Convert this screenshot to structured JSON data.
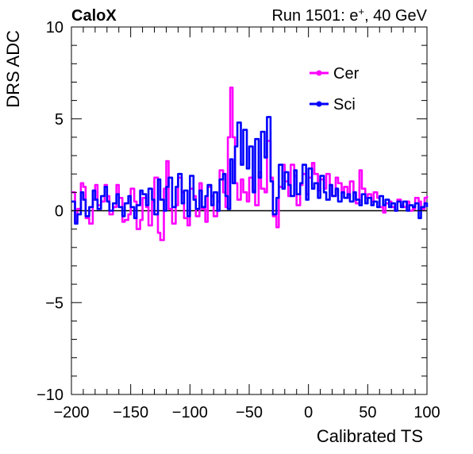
{
  "header": {
    "left": "CaloX",
    "right_prefix": "Run 1501: e",
    "right_sup": "+",
    "right_suffix": ", 40 GeV"
  },
  "chart_data": {
    "type": "line",
    "xlabel": "Calibrated TS",
    "ylabel": "DRS ADC",
    "xlim": [
      -200,
      100
    ],
    "ylim": [
      -10,
      10
    ],
    "x_ticks": [
      -200,
      -150,
      -100,
      -50,
      0,
      50,
      100
    ],
    "x_tick_labels": [
      "−200",
      "−150",
      "−100",
      "−50",
      "0",
      "50",
      "100"
    ],
    "y_ticks": [
      -10,
      -5,
      0,
      5,
      10
    ],
    "y_tick_labels": [
      "−10",
      "−5",
      "0",
      "5",
      "10"
    ],
    "zero_line": true,
    "grid": false,
    "legend_position": "top-right",
    "series": [
      {
        "name": "Cer",
        "color": "#ff00ff",
        "x": [
          -200,
          -197,
          -195,
          -192,
          -190,
          -188,
          -185,
          -182,
          -180,
          -178,
          -175,
          -172,
          -170,
          -168,
          -165,
          -162,
          -160,
          -157,
          -155,
          -152,
          -150,
          -147,
          -145,
          -142,
          -140,
          -137,
          -135,
          -132,
          -130,
          -127,
          -125,
          -122,
          -120,
          -118,
          -115,
          -112,
          -110,
          -107,
          -105,
          -102,
          -100,
          -97,
          -95,
          -92,
          -90,
          -87,
          -85,
          -82,
          -80,
          -77,
          -75,
          -72,
          -70,
          -68,
          -66,
          -64,
          -62,
          -60,
          -57,
          -55,
          -52,
          -50,
          -47,
          -45,
          -42,
          -40,
          -37,
          -35,
          -32,
          -30,
          -27,
          -25,
          -22,
          -20,
          -17,
          -15,
          -12,
          -10,
          -7,
          -5,
          -2,
          0,
          3,
          5,
          8,
          10,
          13,
          15,
          18,
          20,
          23,
          25,
          28,
          30,
          33,
          35,
          38,
          40,
          43,
          45,
          48,
          50,
          53,
          55,
          58,
          60,
          63,
          65,
          68,
          70,
          73,
          75,
          78,
          80,
          83,
          85,
          88,
          90,
          93,
          95,
          98,
          100
        ],
        "y": [
          1.0,
          -0.6,
          0.1,
          1.5,
          1.3,
          -0.4,
          -0.7,
          0.6,
          1.4,
          0.3,
          0.5,
          1.4,
          0.8,
          -0.2,
          0.2,
          1.4,
          0.7,
          -0.6,
          -0.5,
          -0.2,
          1.2,
          0.5,
          -1.0,
          -0.5,
          0.7,
          0.2,
          -0.8,
          0.5,
          1.8,
          -1.2,
          -1.6,
          1.2,
          2.7,
          0.1,
          -0.7,
          0.3,
          1.8,
          1.0,
          -0.4,
          -0.8,
          1.2,
          0.8,
          -0.3,
          1.5,
          0.1,
          -0.6,
          1.3,
          0.8,
          -0.3,
          0.5,
          2.2,
          1.0,
          0.2,
          4.0,
          6.7,
          4.0,
          1.5,
          0.6,
          1.7,
          1.0,
          0.5,
          1.8,
          1.1,
          0.3,
          2.1,
          1.2,
          1.0,
          3.8,
          1.8,
          -0.3,
          -0.9,
          1.3,
          2.5,
          1.6,
          0.8,
          2.5,
          1.9,
          0.3,
          1.4,
          2.0,
          0.9,
          1.8,
          2.6,
          2.0,
          1.1,
          1.7,
          1.2,
          2.0,
          1.4,
          0.8,
          1.8,
          1.5,
          1.0,
          1.3,
          0.7,
          1.6,
          1.0,
          0.4,
          2.2,
          1.2,
          0.7,
          0.9,
          0.5,
          1.0,
          0.7,
          0.2,
          -0.1,
          0.4,
          0.5,
          0.2,
          0.0,
          0.6,
          0.3,
          0.2,
          0.5,
          0.0,
          0.1,
          0.7,
          0.5,
          0.1,
          0.7,
          0.8
        ]
      },
      {
        "name": "Sci",
        "color": "#0000ff",
        "x": [
          -200,
          -197,
          -195,
          -192,
          -190,
          -188,
          -185,
          -182,
          -180,
          -178,
          -175,
          -172,
          -170,
          -168,
          -165,
          -162,
          -160,
          -157,
          -155,
          -152,
          -150,
          -147,
          -145,
          -142,
          -140,
          -137,
          -135,
          -132,
          -130,
          -127,
          -125,
          -122,
          -120,
          -118,
          -115,
          -112,
          -110,
          -107,
          -105,
          -102,
          -100,
          -97,
          -95,
          -92,
          -90,
          -87,
          -85,
          -82,
          -80,
          -77,
          -75,
          -72,
          -70,
          -68,
          -66,
          -64,
          -62,
          -60,
          -57,
          -55,
          -52,
          -50,
          -47,
          -45,
          -42,
          -40,
          -37,
          -35,
          -32,
          -30,
          -27,
          -25,
          -22,
          -20,
          -17,
          -15,
          -12,
          -10,
          -7,
          -5,
          -2,
          0,
          3,
          5,
          8,
          10,
          13,
          15,
          18,
          20,
          23,
          25,
          28,
          30,
          33,
          35,
          38,
          40,
          43,
          45,
          48,
          50,
          53,
          55,
          58,
          60,
          63,
          65,
          68,
          70,
          73,
          75,
          78,
          80,
          83,
          85,
          88,
          90,
          93,
          95,
          98,
          100
        ],
        "y": [
          0.5,
          -0.7,
          -0.2,
          1.0,
          0.6,
          -0.3,
          0.2,
          1.1,
          0.6,
          0.1,
          0.8,
          1.3,
          0.5,
          0.0,
          0.4,
          0.9,
          0.2,
          -0.3,
          0.4,
          0.8,
          0.2,
          -0.4,
          0.3,
          1.1,
          0.9,
          0.3,
          1.2,
          0.6,
          -0.2,
          1.7,
          0.6,
          0.0,
          1.3,
          1.8,
          0.2,
          1.3,
          2.0,
          0.4,
          1.1,
          -0.3,
          1.9,
          0.6,
          0.1,
          1.1,
          0.2,
          0.8,
          1.4,
          0.3,
          1.0,
          0.0,
          1.7,
          2.0,
          0.8,
          0.1,
          2.8,
          1.5,
          3.5,
          4.8,
          2.5,
          4.4,
          2.3,
          3.5,
          1.0,
          3.9,
          1.8,
          4.3,
          2.9,
          5.1,
          1.6,
          -0.2,
          0.7,
          2.5,
          1.2,
          2.1,
          1.4,
          0.8,
          2.2,
          0.9,
          1.5,
          2.5,
          0.6,
          2.3,
          1.2,
          1.5,
          0.7,
          1.9,
          1.0,
          0.6,
          1.4,
          0.8,
          1.2,
          0.5,
          1.0,
          0.7,
          0.9,
          0.5,
          1.0,
          0.6,
          0.3,
          0.9,
          0.4,
          0.7,
          0.3,
          0.5,
          0.2,
          0.8,
          0.3,
          0.6,
          0.2,
          0.4,
          0.0,
          0.5,
          0.2,
          0.5,
          0.0,
          0.3,
          0.2,
          0.4,
          -0.4,
          0.2,
          0.4,
          0.2
        ]
      }
    ]
  }
}
